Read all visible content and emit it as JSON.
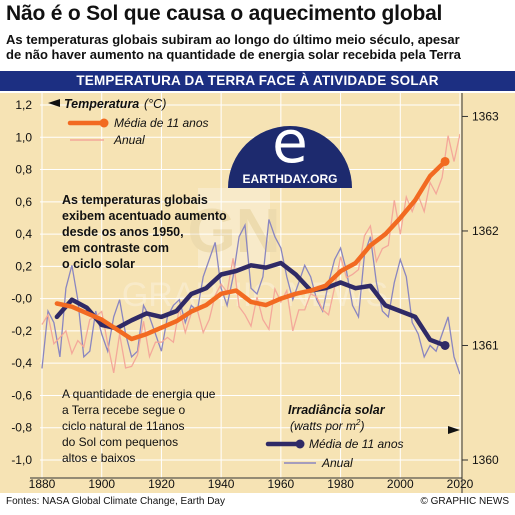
{
  "header": {
    "title": "Não é o Sol que causa o aquecimento global",
    "subtitle_line1": "As temperaturas globais subiram ao longo do último meio século, apesar",
    "subtitle_line2": "de não haver aumento na quantidade de energia solar recebida pela Terra"
  },
  "banner": "TEMPERATURA DA TERRA FACE À ATIVIDADE SOLAR",
  "logo": {
    "text": "EARTHDAY.ORG",
    "icon": "earthday-e-logo"
  },
  "watermark": "GRAPHIC NEWS",
  "annotations": {
    "temp_note": [
      "As temperaturas globais",
      "exibem acentuado aumento",
      "desde os anos 1950,",
      "em contraste com",
      "o ciclo solar"
    ],
    "solar_note": [
      "A quantidade de energia que",
      "a Terra recebe segue o",
      "ciclo natural de 11anos",
      "do Sol com pequenos",
      "altos e baixos"
    ]
  },
  "legend_temp": {
    "title": "Temperatura",
    "unit": "(°C)",
    "avg": "Média de 11 anos",
    "annual": "Anual"
  },
  "legend_solar": {
    "title": "Irradiância solar",
    "unit_prefix": "(watts por m",
    "unit_sup": "2",
    "unit_suffix": ")",
    "avg": "Média de 11 anos",
    "annual": "Anual"
  },
  "footer": {
    "source": "Fontes: NASA Global Climate Change, Earth Day",
    "credit": "© GRAPHIC NEWS"
  },
  "colors": {
    "temp_avg": "#f26a21",
    "temp_annual": "#f4a89a",
    "solar_avg": "#2f2a66",
    "solar_annual": "#8a86c0",
    "banner": "#1c2f82",
    "background": "#f6e3b4"
  },
  "chart_data": {
    "type": "line",
    "x_ticks": [
      1880,
      1900,
      1920,
      1940,
      1960,
      1980,
      2000,
      2020
    ],
    "xlim": [
      1880,
      2020
    ],
    "left_axis": {
      "label": "Temperatura (°C)",
      "ticks": [
        "1,2",
        "1,0",
        "0,8",
        "0,6",
        "0,4",
        "0,2",
        "-0,0",
        "-0,2",
        "-0,4",
        "-0,6",
        "-0,8",
        "-1,0"
      ],
      "ylim": [
        -1.0,
        1.2
      ]
    },
    "right_axis": {
      "label": "Irradiância solar (watts por m2)",
      "ticks": [
        "1363",
        "1362",
        "1361",
        "1360"
      ],
      "ylim": [
        1360,
        1363.1
      ]
    },
    "series": [
      {
        "name": "Temperatura Média de 11 anos",
        "axis": "left",
        "x": [
          1885,
          1890,
          1895,
          1900,
          1905,
          1910,
          1915,
          1920,
          1925,
          1930,
          1935,
          1940,
          1945,
          1950,
          1955,
          1960,
          1965,
          1970,
          1975,
          1980,
          1985,
          1990,
          1995,
          2000,
          2005,
          2010,
          2015
        ],
        "y": [
          -0.03,
          -0.05,
          -0.09,
          -0.13,
          -0.19,
          -0.25,
          -0.22,
          -0.18,
          -0.14,
          -0.08,
          -0.04,
          0.03,
          0.05,
          -0.02,
          -0.04,
          0.0,
          0.03,
          0.05,
          0.08,
          0.17,
          0.22,
          0.33,
          0.4,
          0.5,
          0.61,
          0.76,
          0.85
        ]
      },
      {
        "name": "Temperatura Anual",
        "axis": "left",
        "x": [
          1880,
          1882,
          1884,
          1886,
          1888,
          1890,
          1892,
          1894,
          1896,
          1898,
          1900,
          1902,
          1904,
          1906,
          1908,
          1910,
          1912,
          1914,
          1916,
          1918,
          1920,
          1922,
          1924,
          1926,
          1928,
          1930,
          1932,
          1934,
          1936,
          1938,
          1940,
          1942,
          1944,
          1946,
          1948,
          1950,
          1952,
          1954,
          1956,
          1958,
          1960,
          1962,
          1964,
          1966,
          1968,
          1970,
          1972,
          1974,
          1976,
          1978,
          1980,
          1982,
          1984,
          1986,
          1988,
          1990,
          1992,
          1994,
          1996,
          1998,
          2000,
          2002,
          2004,
          2006,
          2008,
          2010,
          2012,
          2014,
          2016,
          2018,
          2020
        ],
        "y": [
          -0.16,
          -0.1,
          -0.28,
          -0.24,
          -0.2,
          -0.34,
          -0.26,
          -0.3,
          -0.13,
          -0.11,
          -0.08,
          -0.28,
          -0.46,
          -0.22,
          -0.43,
          -0.42,
          -0.35,
          -0.14,
          -0.36,
          -0.27,
          -0.27,
          -0.24,
          -0.27,
          -0.06,
          -0.21,
          -0.09,
          -0.07,
          -0.21,
          -0.13,
          0.02,
          0.09,
          0.04,
          0.25,
          -0.05,
          -0.1,
          -0.17,
          0.01,
          -0.13,
          -0.19,
          0.06,
          -0.02,
          0.05,
          -0.2,
          -0.07,
          -0.07,
          0.03,
          0.01,
          -0.07,
          -0.1,
          0.07,
          0.26,
          0.13,
          0.15,
          0.18,
          0.39,
          0.45,
          0.23,
          0.31,
          0.33,
          0.61,
          0.4,
          0.63,
          0.54,
          0.64,
          0.54,
          0.72,
          0.65,
          0.75,
          1.01,
          0.85,
          1.02
        ]
      },
      {
        "name": "Irradiância solar Média de 11 anos",
        "axis": "right",
        "x": [
          1885,
          1890,
          1895,
          1900,
          1905,
          1910,
          1915,
          1920,
          1925,
          1930,
          1935,
          1940,
          1945,
          1950,
          1955,
          1960,
          1965,
          1970,
          1975,
          1980,
          1985,
          1990,
          1995,
          2000,
          2005,
          2010,
          2015
        ],
        "y": [
          1361.25,
          1361.4,
          1361.33,
          1361.18,
          1361.15,
          1361.22,
          1361.28,
          1361.25,
          1361.3,
          1361.45,
          1361.5,
          1361.62,
          1361.65,
          1361.7,
          1361.68,
          1361.72,
          1361.62,
          1361.48,
          1361.5,
          1361.55,
          1361.5,
          1361.52,
          1361.35,
          1361.3,
          1361.25,
          1361.05,
          1361.0
        ]
      },
      {
        "name": "Irradiância solar Anual",
        "axis": "right",
        "x": [
          1880,
          1882,
          1884,
          1886,
          1888,
          1890,
          1892,
          1894,
          1896,
          1898,
          1900,
          1902,
          1904,
          1906,
          1908,
          1910,
          1912,
          1914,
          1916,
          1918,
          1920,
          1922,
          1924,
          1926,
          1928,
          1930,
          1932,
          1934,
          1936,
          1938,
          1940,
          1942,
          1944,
          1946,
          1948,
          1950,
          1952,
          1954,
          1956,
          1958,
          1960,
          1962,
          1964,
          1966,
          1968,
          1970,
          1972,
          1974,
          1976,
          1978,
          1980,
          1982,
          1984,
          1986,
          1988,
          1990,
          1992,
          1994,
          1996,
          1998,
          2000,
          2002,
          2004,
          2006,
          2008,
          2010,
          2012,
          2014,
          2016,
          2018,
          2020
        ],
        "y": [
          1360.8,
          1361.3,
          1361.2,
          1360.9,
          1361.5,
          1361.7,
          1361.4,
          1360.9,
          1360.95,
          1361.3,
          1361.1,
          1360.95,
          1361.25,
          1361.4,
          1361.1,
          1360.9,
          1360.95,
          1361.35,
          1361.25,
          1361.1,
          1360.95,
          1361.25,
          1361.35,
          1361.4,
          1361.2,
          1361.35,
          1361.3,
          1361.6,
          1361.75,
          1361.9,
          1361.5,
          1361.35,
          1361.6,
          1361.95,
          1362.05,
          1361.5,
          1361.45,
          1361.6,
          1362.1,
          1361.95,
          1361.85,
          1361.6,
          1361.4,
          1361.55,
          1361.7,
          1361.6,
          1361.4,
          1361.3,
          1361.55,
          1361.75,
          1361.85,
          1361.65,
          1361.35,
          1361.25,
          1361.8,
          1361.95,
          1361.55,
          1361.3,
          1361.25,
          1361.55,
          1361.75,
          1361.6,
          1361.2,
          1361.1,
          1360.9,
          1361.0,
          1360.95,
          1361.1,
          1361.25,
          1360.9,
          1360.75
        ]
      }
    ]
  }
}
